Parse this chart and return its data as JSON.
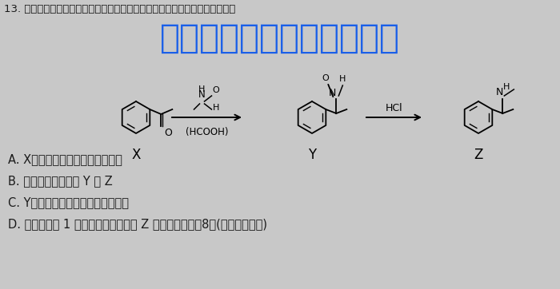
{
  "title_text": "13. 有机物是一种常用的衣板麻黄剂，其某种合成路线如下，下列说法错误的是",
  "watermark": "微信公众号关注：趣找答捈",
  "options": [
    "A. X分子中所有碳原子可能共平面",
    "B. 能用銀氨溶液鉴别 Y 与 Z",
    "C. Y可以发生取代、加成和氧化反应",
    "D. 苯环上只有 1 个取代基且含氨基的 Z 的同分异构体有8种(不含立体异构)"
  ],
  "bg_color": "#c8c8c8",
  "text_color": "#1a1a1a",
  "watermark_color": "#1a5fe8",
  "title_fontsize": 9.5,
  "options_fontsize": 10.5,
  "watermark_fontsize": 30
}
